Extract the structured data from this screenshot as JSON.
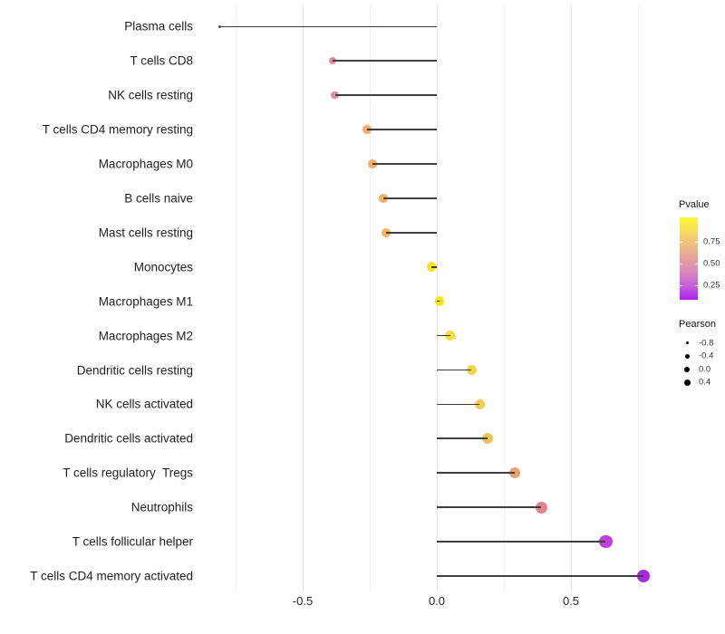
{
  "chart_data": {
    "type": "scatter",
    "subtype": "lollipop",
    "orientation": "horizontal",
    "title": "",
    "xlabel": "",
    "ylabel": "",
    "baseline": 0,
    "xlim": [
      -0.89,
      0.85
    ],
    "grid": "vertical major and minor gridlines, no horizontal grid, white background",
    "x_axis": {
      "ticks": [
        {
          "value": -0.5,
          "label": "-0.5"
        },
        {
          "value": 0.0,
          "label": "0.0"
        },
        {
          "value": 0.5,
          "label": "0.5"
        }
      ],
      "minor_ticks": [
        -0.75,
        -0.25,
        0.25,
        0.75
      ]
    },
    "series_name": "Pearson",
    "color_variable": "Pvalue",
    "rows": [
      {
        "label": "Plasma cells",
        "pearson": -0.81,
        "color": "#7d2ccf"
      },
      {
        "label": "T cells CD8",
        "pearson": -0.39,
        "color": "#df8da2"
      },
      {
        "label": "NK cells resting",
        "pearson": -0.38,
        "color": "#df8da2"
      },
      {
        "label": "T cells CD4 memory resting",
        "pearson": -0.26,
        "color": "#efae72"
      },
      {
        "label": "Macrophages M0",
        "pearson": -0.24,
        "color": "#f0b06d"
      },
      {
        "label": "B cells naive",
        "pearson": -0.2,
        "color": "#f1b566"
      },
      {
        "label": "Mast cells resting",
        "pearson": -0.19,
        "color": "#f1b663"
      },
      {
        "label": "Monocytes",
        "pearson": -0.02,
        "color": "#f4e61a"
      },
      {
        "label": "Macrophages M1",
        "pearson": 0.01,
        "color": "#f5eb13"
      },
      {
        "label": "Macrophages M2",
        "pearson": 0.05,
        "color": "#f4dd34"
      },
      {
        "label": "Dendritic cells resting",
        "pearson": 0.13,
        "color": "#f3d348"
      },
      {
        "label": "NK cells activated",
        "pearson": 0.16,
        "color": "#f2cd51"
      },
      {
        "label": "Dendritic cells activated",
        "pearson": 0.19,
        "color": "#f0c25c"
      },
      {
        "label": "T cells regulatory  Tregs",
        "pearson": 0.29,
        "color": "#eaa177"
      },
      {
        "label": "Neutrophils",
        "pearson": 0.39,
        "color": "#e28490"
      },
      {
        "label": "T cells follicular helper",
        "pearson": 0.63,
        "color": "#bd40d8"
      },
      {
        "label": "T cells CD4 memory activated",
        "pearson": 0.77,
        "color": "#a82be2"
      }
    ],
    "legend_pvalue": {
      "title": "Pvalue",
      "tick_labels": [
        "0.75",
        "0.50",
        "0.25"
      ],
      "gradient_top_to_bottom": [
        "#fcf735",
        "#f6dc5f",
        "#efbd82",
        "#e59f9f",
        "#d987bc",
        "#c45fde",
        "#ac22f0"
      ]
    },
    "legend_pearson": {
      "title": "Pearson",
      "entries": [
        {
          "label": "-0.8"
        },
        {
          "label": "-0.4"
        },
        {
          "label": "0.0"
        },
        {
          "label": "0.4"
        }
      ],
      "dot_color": "#000000"
    }
  }
}
